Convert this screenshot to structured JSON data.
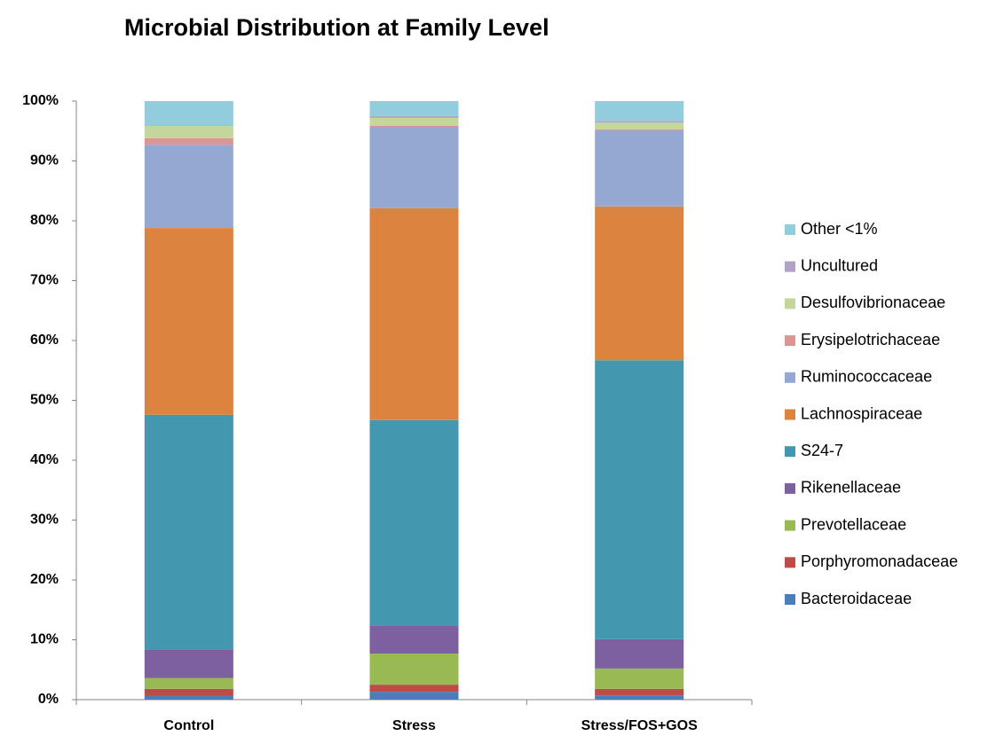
{
  "chart_data": {
    "type": "stacked_bar",
    "title": "Microbial Distribution at Family Level",
    "categories": [
      "Control",
      "Stress",
      "Stress/FOS+GOS"
    ],
    "series": [
      {
        "name": "Bacteroidaceae",
        "color": "#4a7ebb",
        "values": [
          0.6,
          1.3,
          0.7
        ]
      },
      {
        "name": "Porphyromonadaceae",
        "color": "#be4b48",
        "values": [
          1.2,
          1.2,
          1.1
        ]
      },
      {
        "name": "Prevotellaceae",
        "color": "#98b954",
        "values": [
          1.8,
          5.2,
          3.4
        ]
      },
      {
        "name": "Rikenellaceae",
        "color": "#7d60a0",
        "values": [
          4.7,
          4.6,
          4.9
        ]
      },
      {
        "name": "S24-7",
        "color": "#4398af",
        "values": [
          39.3,
          34.4,
          46.6
        ]
      },
      {
        "name": "Lachnospiraceae",
        "color": "#dd8340",
        "values": [
          31.2,
          35.4,
          25.7
        ]
      },
      {
        "name": "Ruminococcaceae",
        "color": "#95a8d1",
        "values": [
          13.9,
          13.6,
          12.7
        ]
      },
      {
        "name": "Erysipelotrichaceae",
        "color": "#d99694",
        "values": [
          1.1,
          0.2,
          0.2
        ]
      },
      {
        "name": "Desulfovibrionaceae",
        "color": "#c3d69b",
        "values": [
          2.1,
          1.3,
          1.1
        ]
      },
      {
        "name": "Uncultured",
        "color": "#b3a2c7",
        "values": [
          0.1,
          0.3,
          0.3
        ]
      },
      {
        "name": "Other <1%",
        "color": "#93cddd",
        "values": [
          4.0,
          2.5,
          3.3
        ]
      }
    ],
    "ylim": [
      0,
      100
    ],
    "yticks": [
      {
        "value": 0,
        "label": "0%"
      },
      {
        "value": 10,
        "label": "10%"
      },
      {
        "value": 20,
        "label": "20%"
      },
      {
        "value": 30,
        "label": "30%"
      },
      {
        "value": 40,
        "label": "40%"
      },
      {
        "value": 50,
        "label": "50%"
      },
      {
        "value": 60,
        "label": "60%"
      },
      {
        "value": 70,
        "label": "70%"
      },
      {
        "value": 80,
        "label": "80%"
      },
      {
        "value": 90,
        "label": "90%"
      },
      {
        "value": 100,
        "label": "100%"
      }
    ],
    "grid": false,
    "legend": "right"
  }
}
